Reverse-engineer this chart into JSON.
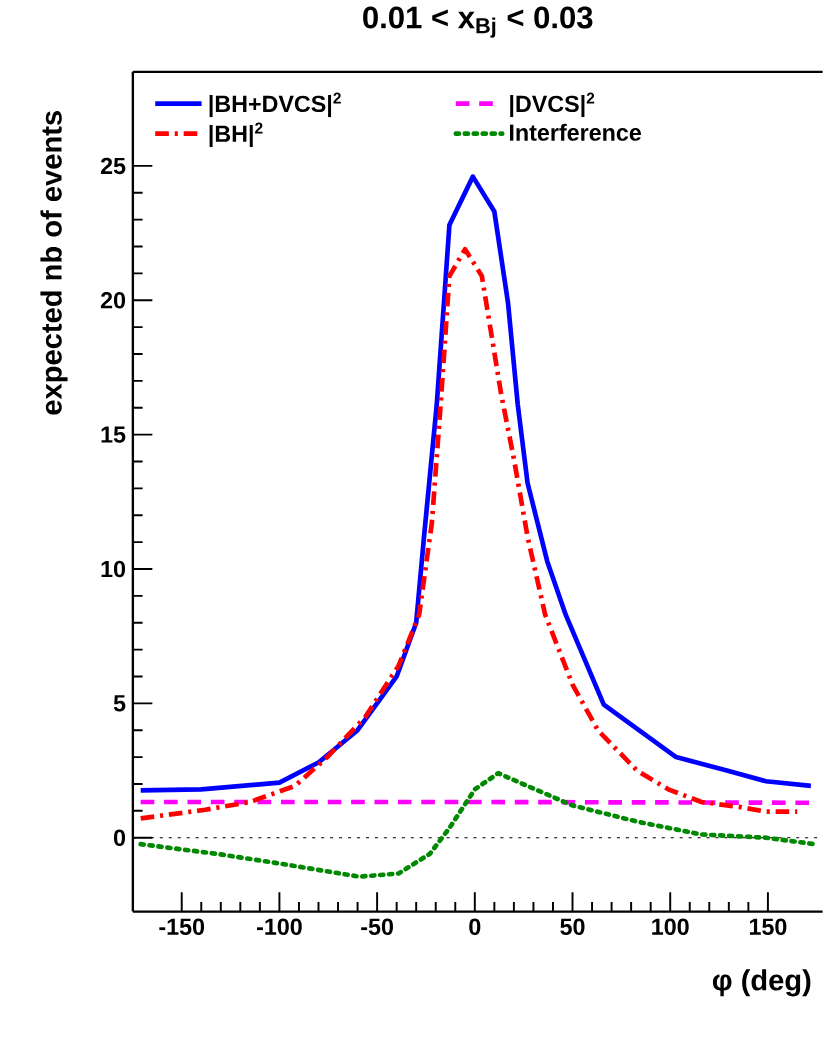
{
  "chart_data": {
    "type": "line",
    "title": "0.01 < x$_{Bj}$ < 0.03",
    "xlabel": "φ (deg)",
    "ylabel": "expected nb of events",
    "xlim": [
      -175,
      178
    ],
    "ylim": [
      -2.75,
      28.5
    ],
    "xticks": [
      -150,
      -100,
      -50,
      0,
      50,
      100,
      150
    ],
    "yticks": [
      0,
      5,
      10,
      15,
      20,
      25
    ],
    "legend": "top",
    "grid": false,
    "marker": "none",
    "ref_lines": [
      {
        "axis": "y",
        "value": 0,
        "color": "#000000",
        "line_style": "dotted"
      }
    ],
    "series": [
      {
        "name": "|BH+DVCS|$^{2}$",
        "color": "#0000ff",
        "line_style": "solid",
        "x": [
          -171,
          -140,
          -100,
          -80,
          -60,
          -40,
          -30,
          -26,
          -19.5,
          -16,
          -13,
          -1,
          10,
          17,
          22,
          27,
          37,
          46.5,
          66,
          103,
          129,
          149,
          172
        ],
        "values": [
          1.76,
          1.8,
          2.05,
          2.8,
          4.0,
          6.0,
          8.0,
          11.2,
          16.1,
          19.7,
          22.8,
          24.6,
          23.3,
          19.9,
          16.1,
          13.2,
          10.3,
          8.3,
          4.95,
          3.0,
          2.5,
          2.1,
          1.93
        ]
      },
      {
        "name": "|DVCS|$^{2}$",
        "color": "#ff00ff",
        "line_style": "dashed",
        "x": [
          -171,
          0,
          172
        ],
        "values": [
          1.33,
          1.33,
          1.3
        ]
      },
      {
        "name": "|BH|$^{2}$",
        "color": "#ff0000",
        "line_style": "dashdot",
        "x": [
          -171,
          -138,
          -115,
          -92,
          -75.5,
          -56,
          -39,
          -28.5,
          -22,
          -17.5,
          -13,
          -5,
          3.6,
          13.5,
          20,
          27,
          36,
          50,
          63,
          83,
          99,
          116,
          136,
          149,
          165
        ],
        "values": [
          0.72,
          1.04,
          1.33,
          1.93,
          3.0,
          4.5,
          6.4,
          8.3,
          11.7,
          16.1,
          20.9,
          21.9,
          20.9,
          16.5,
          14.1,
          11.2,
          8.3,
          5.7,
          4.0,
          2.5,
          1.8,
          1.33,
          1.14,
          0.97,
          0.97
        ]
      },
      {
        "name": "Interference",
        "color": "#008800",
        "line_style": "dotted",
        "x": [
          -171,
          -132,
          -99,
          -59,
          -39,
          -23,
          -13,
          0,
          12,
          23,
          50,
          83,
          116,
          149,
          174
        ],
        "values": [
          -0.24,
          -0.6,
          -0.97,
          -1.45,
          -1.33,
          -0.6,
          0.36,
          1.8,
          2.4,
          2.05,
          1.2,
          0.6,
          0.12,
          0,
          -0.24
        ]
      }
    ]
  }
}
